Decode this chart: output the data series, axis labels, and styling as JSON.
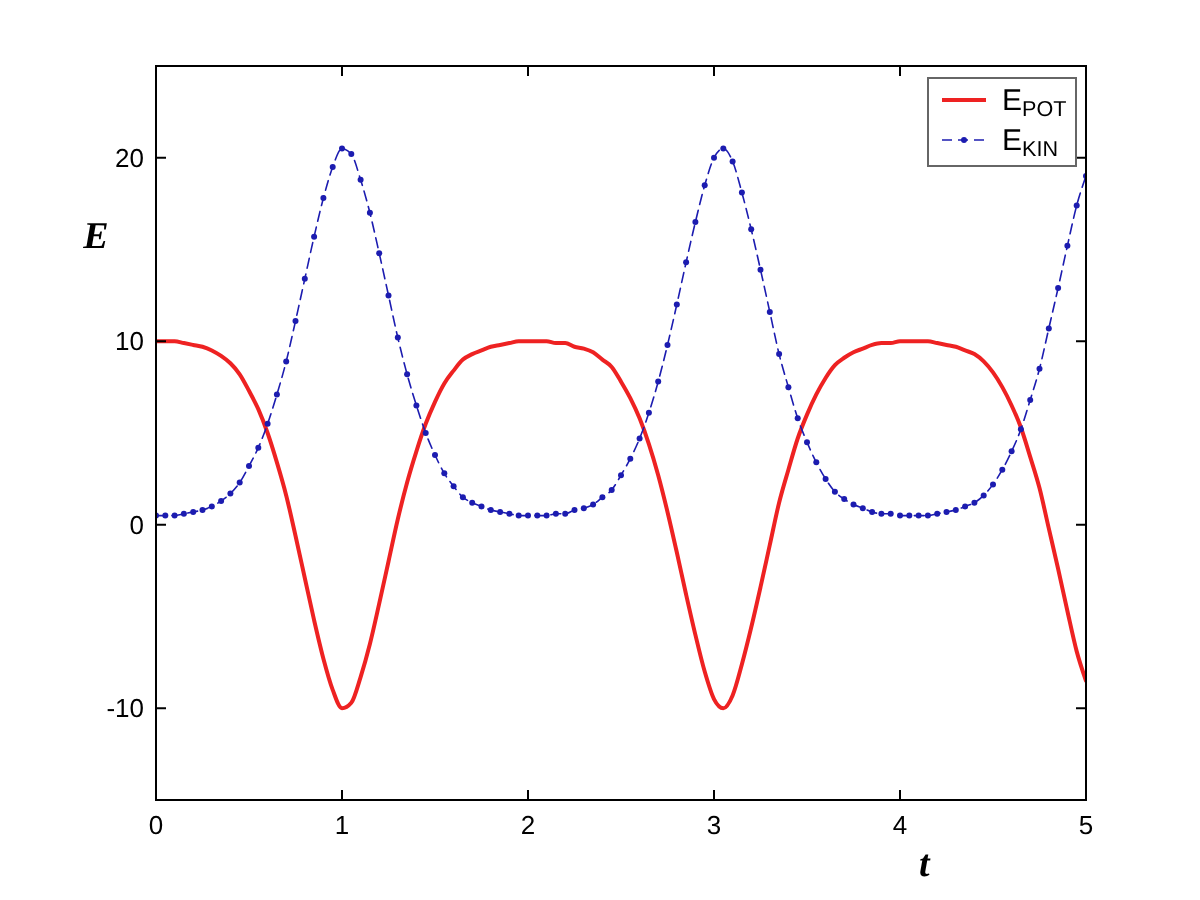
{
  "chart_data": {
    "type": "line",
    "xlabel": "t",
    "ylabel": "E",
    "xlim": [
      0,
      5
    ],
    "ylim": [
      -15,
      25
    ],
    "xticks": [
      0,
      1,
      2,
      3,
      4,
      5
    ],
    "yticks": [
      -10,
      0,
      10,
      20
    ],
    "legend": "top right",
    "x": [
      0,
      0.05,
      0.1,
      0.15,
      0.2,
      0.25,
      0.3,
      0.35,
      0.4,
      0.45,
      0.5,
      0.55,
      0.6,
      0.65,
      0.7,
      0.75,
      0.8,
      0.85,
      0.9,
      0.95,
      1,
      1.05,
      1.1,
      1.15,
      1.2,
      1.25,
      1.3,
      1.35,
      1.4,
      1.45,
      1.5,
      1.55,
      1.6,
      1.65,
      1.7,
      1.75,
      1.8,
      1.85,
      1.9,
      1.95,
      2,
      2.05,
      2.1,
      2.15,
      2.2,
      2.25,
      2.3,
      2.35,
      2.4,
      2.45,
      2.5,
      2.55,
      2.6,
      2.65,
      2.7,
      2.75,
      2.8,
      2.85,
      2.9,
      2.95,
      3,
      3.05,
      3.1,
      3.15,
      3.2,
      3.25,
      3.3,
      3.35,
      3.4,
      3.45,
      3.5,
      3.55,
      3.6,
      3.65,
      3.7,
      3.75,
      3.8,
      3.85,
      3.9,
      3.95,
      4,
      4.05,
      4.1,
      4.15,
      4.2,
      4.25,
      4.3,
      4.35,
      4.4,
      4.45,
      4.5,
      4.55,
      4.6,
      4.65,
      4.7,
      4.75,
      4.8,
      4.85,
      4.9,
      4.95,
      5
    ],
    "series": [
      {
        "name": "E$_{POT}$",
        "color": "#ee2222",
        "line_style": "solid",
        "marker": "none",
        "values": [
          10.0,
          10.0,
          10.0,
          9.9,
          9.8,
          9.7,
          9.5,
          9.2,
          8.8,
          8.2,
          7.3,
          6.3,
          5.0,
          3.4,
          1.6,
          -0.6,
          -2.9,
          -5.2,
          -7.3,
          -9.0,
          -10.0,
          -9.7,
          -8.3,
          -6.5,
          -4.3,
          -2.0,
          0.3,
          2.3,
          4.0,
          5.5,
          6.7,
          7.7,
          8.4,
          9.0,
          9.3,
          9.5,
          9.7,
          9.8,
          9.9,
          10.0,
          10.0,
          10.0,
          10.0,
          9.9,
          9.9,
          9.7,
          9.6,
          9.4,
          9.0,
          8.6,
          7.8,
          6.9,
          5.8,
          4.4,
          2.7,
          0.7,
          -1.5,
          -3.8,
          -6.0,
          -8.0,
          -9.5,
          -10.0,
          -9.3,
          -7.6,
          -5.6,
          -3.4,
          -1.1,
          1.2,
          3.0,
          4.7,
          6.0,
          7.1,
          8.0,
          8.7,
          9.1,
          9.4,
          9.6,
          9.8,
          9.9,
          9.9,
          10.0,
          10.0,
          10.0,
          10.0,
          9.9,
          9.8,
          9.7,
          9.5,
          9.3,
          8.9,
          8.3,
          7.5,
          6.5,
          5.3,
          3.7,
          2.0,
          -0.2,
          -2.4,
          -4.7,
          -6.9,
          -8.5
        ]
      },
      {
        "name": "E$_{KIN}$",
        "color": "#1c1cb0",
        "line_style": "dashed",
        "marker": "circle",
        "values": [
          0.5,
          0.5,
          0.5,
          0.6,
          0.7,
          0.8,
          1.0,
          1.3,
          1.7,
          2.3,
          3.2,
          4.2,
          5.5,
          7.1,
          8.9,
          11.1,
          13.4,
          15.7,
          17.8,
          19.5,
          20.5,
          20.2,
          18.8,
          17.0,
          14.8,
          12.5,
          10.2,
          8.2,
          6.5,
          5.0,
          3.8,
          2.8,
          2.1,
          1.5,
          1.2,
          1.0,
          0.8,
          0.7,
          0.6,
          0.5,
          0.5,
          0.5,
          0.5,
          0.6,
          0.6,
          0.8,
          0.9,
          1.1,
          1.5,
          1.9,
          2.7,
          3.6,
          4.7,
          6.1,
          7.8,
          9.8,
          12.0,
          14.3,
          16.5,
          18.5,
          20.0,
          20.5,
          19.8,
          18.1,
          16.1,
          13.9,
          11.6,
          9.3,
          7.5,
          5.8,
          4.5,
          3.4,
          2.5,
          1.8,
          1.4,
          1.1,
          0.9,
          0.7,
          0.6,
          0.6,
          0.5,
          0.5,
          0.5,
          0.5,
          0.6,
          0.7,
          0.8,
          1.0,
          1.2,
          1.6,
          2.2,
          3.0,
          4.0,
          5.2,
          6.8,
          8.5,
          10.7,
          12.9,
          15.2,
          17.4,
          19.0
        ]
      }
    ]
  }
}
